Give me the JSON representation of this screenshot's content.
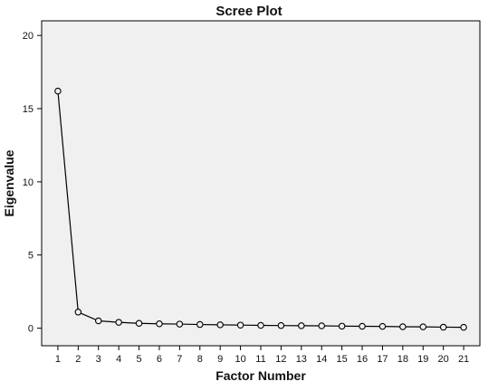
{
  "chart_data": {
    "type": "line",
    "title": "Scree Plot",
    "xlabel": "Factor Number",
    "ylabel": "Eigenvalue",
    "x": [
      1,
      2,
      3,
      4,
      5,
      6,
      7,
      8,
      9,
      10,
      11,
      12,
      13,
      14,
      15,
      16,
      17,
      18,
      19,
      20,
      21
    ],
    "y": [
      16.2,
      1.1,
      0.5,
      0.4,
      0.33,
      0.3,
      0.28,
      0.25,
      0.23,
      0.21,
      0.19,
      0.18,
      0.17,
      0.16,
      0.14,
      0.13,
      0.12,
      0.1,
      0.09,
      0.07,
      0.06
    ],
    "xlim": [
      0.2,
      21.8
    ],
    "ylim": [
      -1.2,
      21
    ],
    "yticks": [
      0,
      5,
      10,
      15,
      20
    ],
    "xticks": [
      1,
      2,
      3,
      4,
      5,
      6,
      7,
      8,
      9,
      10,
      11,
      12,
      13,
      14,
      15,
      16,
      17,
      18,
      19,
      20,
      21
    ],
    "grid": false,
    "legend": "none",
    "marker": "open-circle",
    "colors": {
      "plot_background": "#f0f0f0",
      "line": "#000000",
      "axes": "#000000",
      "text": "#111111"
    }
  }
}
